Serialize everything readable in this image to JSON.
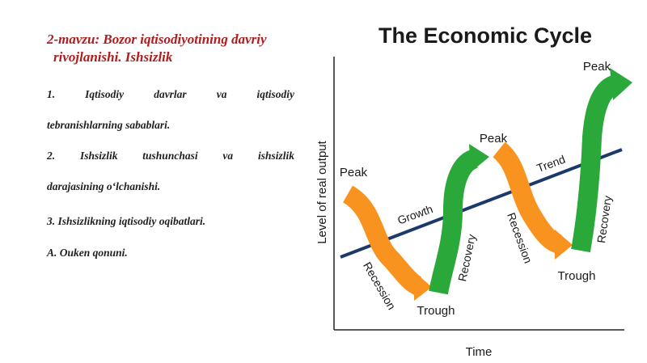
{
  "slide": {
    "heading_line1": "2-mavzu: Bozor iqtisodiyotining davriy",
    "heading_line2": "rivojlanishi. Ishsizlik",
    "items": [
      {
        "first": "1. Iqtisodiy davrlar va iqtisodiy",
        "second": "tebranishlarning sabablari."
      },
      {
        "first": "2. Ishsizlik tushunchasi va ishsizlik",
        "second": "darajasining o‘lchanishi."
      },
      {
        "first": "3. Ishsizlikning iqtisodiy oqibatlari."
      },
      {
        "first": "A. Ouken qonuni."
      }
    ]
  },
  "diagram": {
    "title": "The Economic Cycle",
    "y_axis_label": "Level of real output",
    "x_axis_label": "Time",
    "labels": {
      "peak_1": "Peak",
      "peak_2": "Peak",
      "peak_3": "Peak",
      "trough_1": "Trough",
      "trough_2": "Trough",
      "recession_1": "Recession",
      "recession_2": "Recession",
      "recovery_1": "Recovery",
      "recovery_2": "Recovery",
      "growth": "Growth",
      "trend": "Trend"
    },
    "colors": {
      "recession": "#f7931e",
      "recovery": "#2aa839",
      "trend_line": "#1b3a6b",
      "axis": "#222222",
      "title": "#111111"
    }
  }
}
